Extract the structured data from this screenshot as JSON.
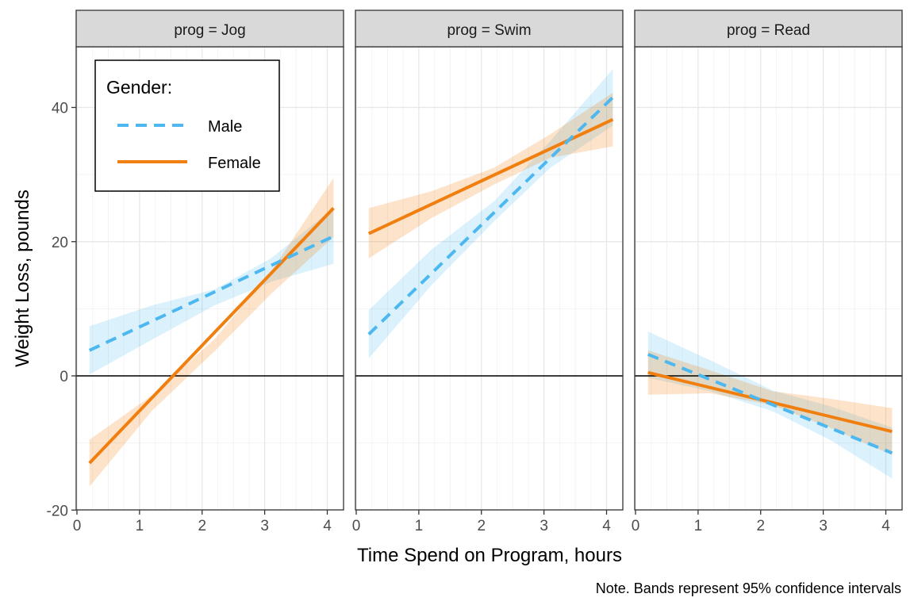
{
  "chart_data": {
    "type": "line",
    "ylabel": "Weight Loss, pounds",
    "xlabel": "Time Spend on Program, hours",
    "note": "Note. Bands represent 95% confidence intervals",
    "xlim": [
      0,
      4.2
    ],
    "ylim": [
      -20,
      50
    ],
    "x_ticks": [
      0,
      1,
      2,
      3,
      4
    ],
    "y_ticks": [
      -20,
      0,
      20,
      40
    ],
    "grid": true,
    "legend": {
      "title": "Gender:",
      "position": "top-left",
      "entries": [
        {
          "label": "Male",
          "color": "#4db8f0",
          "linetype": "dashed"
        },
        {
          "label": "Female",
          "color": "#f07f0f",
          "linetype": "solid"
        }
      ]
    },
    "colors": {
      "male": "#4db8f0",
      "female": "#f07f0f",
      "strip": "#d9d9d9"
    },
    "panels": [
      {
        "strip": "prog = Jog",
        "series": [
          {
            "name": "Male",
            "x": [
              0.2,
              4.1
            ],
            "y": [
              3.8,
              20.8
            ],
            "band": {
              "x": [
                0.2,
                1.2,
                2.2,
                3.1,
                4.1
              ],
              "lo": [
                0.2,
                5.4,
                10.5,
                14.0,
                16.7
              ],
              "hi": [
                7.4,
                10.5,
                12.9,
                17.5,
                25.0
              ]
            }
          },
          {
            "name": "Female",
            "x": [
              0.2,
              4.1
            ],
            "y": [
              -13.0,
              25.0
            ],
            "band": {
              "x": [
                0.2,
                1.2,
                2.2,
                3.1,
                4.1
              ],
              "lo": [
                -16.5,
                -5.2,
                3.7,
                12.2,
                20.7
              ],
              "hi": [
                -9.5,
                -2.9,
                5.5,
                15.5,
                29.5
              ]
            }
          }
        ]
      },
      {
        "strip": "prog = Swim",
        "series": [
          {
            "name": "Male",
            "x": [
              0.2,
              4.1
            ],
            "y": [
              6.2,
              41.5
            ],
            "band": {
              "x": [
                0.2,
                1.2,
                2.2,
                3.1,
                4.1
              ],
              "lo": [
                2.6,
                13.5,
                23.0,
                31.0,
                37.3
              ],
              "hi": [
                9.8,
                18.8,
                26.0,
                35.0,
                45.7
              ]
            }
          },
          {
            "name": "Female",
            "x": [
              0.2,
              4.1
            ],
            "y": [
              21.2,
              38.2
            ],
            "band": {
              "x": [
                0.2,
                1.2,
                2.2,
                3.1,
                4.1
              ],
              "lo": [
                17.5,
                23.5,
                28.5,
                32.5,
                34.2
              ],
              "hi": [
                25.0,
                27.5,
                31.0,
                36.0,
                42.2
              ]
            }
          }
        ]
      },
      {
        "strip": "prog = Read",
        "series": [
          {
            "name": "Male",
            "x": [
              0.2,
              4.1
            ],
            "y": [
              3.2,
              -11.5
            ],
            "band": {
              "x": [
                0.2,
                1.2,
                2.2,
                3.1,
                4.1
              ],
              "lo": [
                -0.3,
                -2.3,
                -5.3,
                -9.5,
                -15.3
              ],
              "hi": [
                6.6,
                2.3,
                -2.2,
                -4.5,
                -7.7
              ]
            }
          },
          {
            "name": "Female",
            "x": [
              0.2,
              4.1
            ],
            "y": [
              0.5,
              -8.3
            ],
            "band": {
              "x": [
                0.2,
                1.2,
                2.2,
                3.1,
                4.1
              ],
              "lo": [
                -2.8,
                -2.6,
                -4.4,
                -7.7,
                -11.8
              ],
              "hi": [
                3.8,
                0.8,
                -2.3,
                -3.4,
                -4.8
              ]
            }
          }
        ]
      }
    ]
  }
}
